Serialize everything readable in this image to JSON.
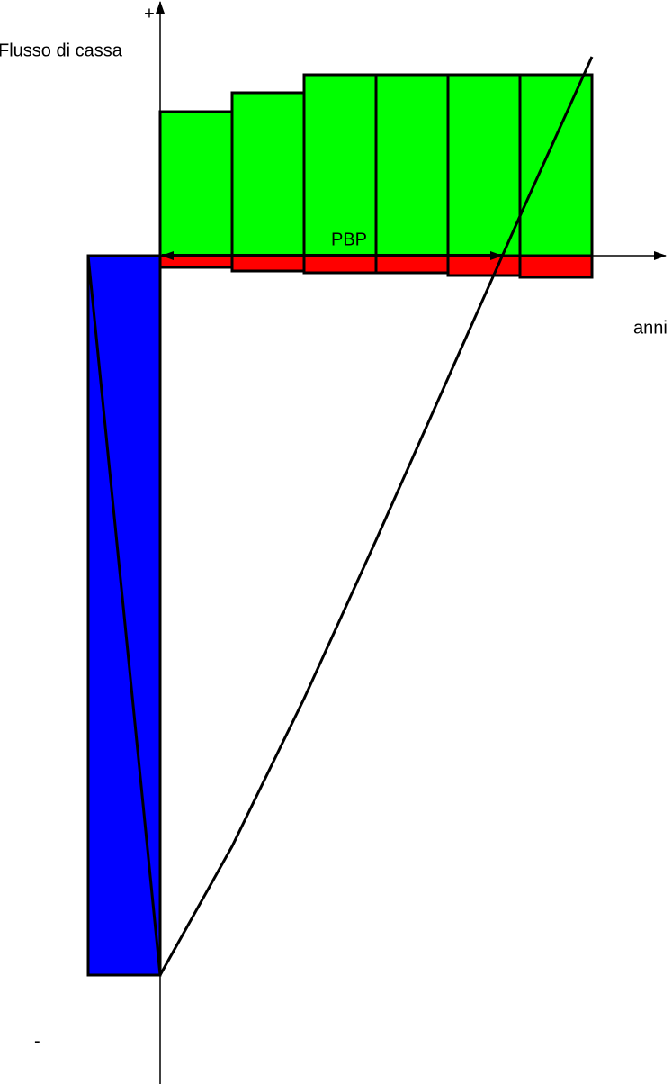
{
  "axes": {
    "y_plus": "+",
    "y_label": "Flusso di cassa",
    "y_minus": "-",
    "x_label": "anni"
  },
  "annotation": "PBP"
}
